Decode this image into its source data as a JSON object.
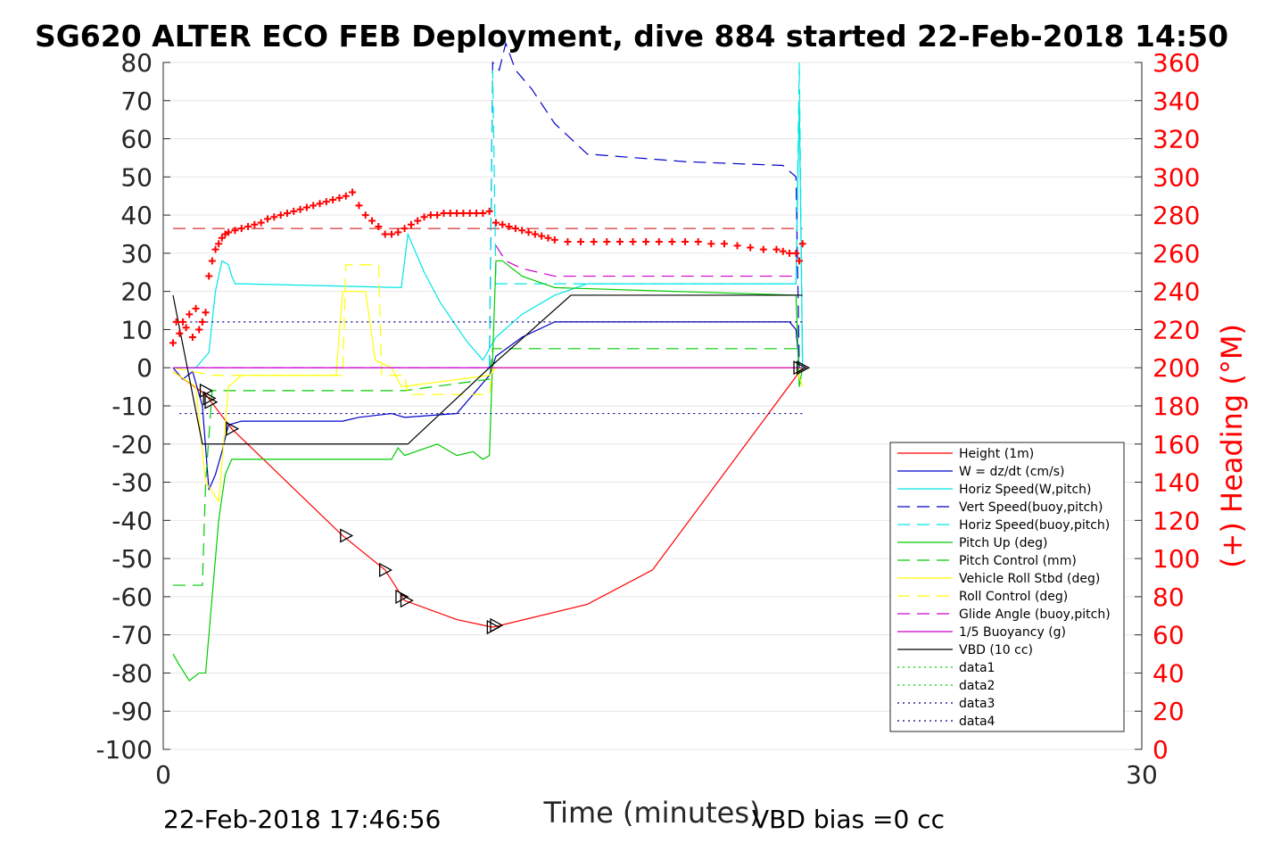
{
  "chart_data": {
    "type": "line",
    "title": "SG620 ALTER ECO FEB Deployment, dive 884 started 22-Feb-2018 14:50",
    "xlabel": "Time (minutes)",
    "ylabel_right": "(+) Heading (°M)",
    "xlim": [
      0,
      30
    ],
    "ylim": [
      -100,
      80
    ],
    "ylim_right": [
      0,
      360
    ],
    "x_ticks": [
      "0",
      "30"
    ],
    "y_ticks": [
      "80",
      "70",
      "60",
      "50",
      "40",
      "30",
      "20",
      "10",
      "0",
      "-10",
      "-20",
      "-30",
      "-40",
      "-50",
      "-60",
      "-70",
      "-80",
      "-90",
      "-100"
    ],
    "y_right_ticks": [
      "360",
      "340",
      "320",
      "300",
      "280",
      "260",
      "240",
      "220",
      "200",
      "180",
      "160",
      "140",
      "120",
      "100",
      "80",
      "60",
      "40",
      "20",
      "0"
    ],
    "grid": true,
    "legend_position": "lower-right",
    "footer_left": "22-Feb-2018 17:46:56",
    "footer_right": "VBD bias =0 cc",
    "series": [
      {
        "name": "Height (1m)",
        "color": "#ff0000",
        "style": "solid",
        "x": [
          0.3,
          1.3,
          2.1,
          5.5,
          6.8,
          7.4,
          9.0,
          10.1,
          13.0,
          15.0,
          19.6
        ],
        "y": [
          -1,
          -7,
          -16,
          -44,
          -53,
          -61,
          -66,
          -68,
          -62,
          -53,
          0
        ]
      },
      {
        "name": "W = dz/dt (cm/s)",
        "color": "#0000cc",
        "style": "solid",
        "x": [
          0.3,
          0.6,
          0.9,
          1.2,
          1.4,
          1.6,
          1.8,
          2.0,
          2.4,
          5.5,
          6.0,
          7.0,
          7.4,
          9.0,
          10.0,
          10.2,
          11.0,
          12.0,
          19.2,
          19.4,
          19.5
        ],
        "y": [
          0,
          -3,
          -1,
          -10,
          -32,
          -28,
          -22,
          -15,
          -14,
          -14,
          -13,
          -12,
          -13,
          -12,
          -2,
          3,
          8,
          12,
          12,
          10,
          0
        ]
      },
      {
        "name": "Horiz Speed(W,pitch)",
        "color": "#00e5e5",
        "style": "solid",
        "x": [
          0.3,
          1.0,
          1.4,
          1.6,
          1.8,
          2.0,
          2.1,
          2.2,
          2.4,
          7.3,
          7.5,
          8.0,
          8.5,
          9.3,
          9.8,
          10.2,
          11.0,
          12.0,
          13.0,
          19.4,
          19.5,
          19.6
        ],
        "y": [
          0,
          0,
          4,
          20,
          28,
          27,
          24,
          22,
          22,
          21,
          35,
          25,
          17,
          7,
          2,
          8,
          14,
          19,
          22,
          22,
          70,
          0
        ]
      },
      {
        "name": "Vert Speed(buoy,pitch)",
        "color": "#0000cc",
        "style": "dashed",
        "x": [
          10.0,
          10.1,
          10.3,
          10.5,
          10.8,
          11.3,
          12.0,
          13.0,
          16.0,
          19.0,
          19.4,
          19.5
        ],
        "y": [
          0,
          80,
          78,
          85,
          78,
          73,
          64,
          56,
          54,
          53,
          50,
          0
        ]
      },
      {
        "name": "Horiz Speed(buoy,pitch)",
        "color": "#00e5e5",
        "style": "dashed",
        "x": [
          10.0,
          10.1,
          10.2,
          19.4,
          19.5,
          19.6
        ],
        "y": [
          0,
          78,
          22,
          22,
          80,
          0
        ]
      },
      {
        "name": "Pitch Up (deg)",
        "color": "#00cc00",
        "style": "solid",
        "x": [
          0.3,
          0.5,
          0.8,
          1.1,
          1.3,
          1.5,
          1.7,
          1.9,
          2.1,
          2.4,
          7.0,
          7.2,
          7.4,
          8.4,
          9.0,
          9.5,
          9.8,
          10.0,
          10.2,
          10.4,
          11.0,
          12.0,
          19.4,
          19.5,
          19.6
        ],
        "y": [
          -75,
          -78,
          -82,
          -80,
          -80,
          -60,
          -40,
          -28,
          -24,
          -24,
          -24,
          -21,
          -23,
          -20,
          -23,
          -22,
          -24,
          -23,
          28,
          28,
          24,
          21,
          19,
          -5,
          0
        ]
      },
      {
        "name": "Pitch Control (mm)",
        "color": "#00cc00",
        "style": "dashed",
        "x": [
          0.3,
          1.2,
          1.3,
          1.5,
          7.4,
          10.0,
          10.1,
          19.6
        ],
        "y": [
          -57,
          -57,
          -30,
          -6,
          -6,
          -3,
          5,
          5
        ]
      },
      {
        "name": "Vehicle Roll Stbd (deg)",
        "color": "#ffff00",
        "style": "solid",
        "x": [
          0.3,
          1.0,
          1.3,
          1.7,
          2.0,
          2.4,
          5.3,
          5.5,
          6.2,
          6.5,
          7.0,
          7.3,
          10.0,
          10.2,
          19.4,
          19.6
        ],
        "y": [
          -1,
          -5,
          -30,
          -35,
          -5,
          -2,
          -2,
          20,
          20,
          2,
          0,
          -5,
          -2,
          0,
          0,
          -5
        ]
      },
      {
        "name": "Roll Control (deg)",
        "color": "#ffff00",
        "style": "dashed",
        "x": [
          0.3,
          1.5,
          1.7,
          5.5,
          5.6,
          6.6,
          6.7,
          7.4,
          7.5,
          10.0,
          10.1,
          19.6
        ],
        "y": [
          0,
          -2,
          -2,
          -2,
          27,
          27,
          -2,
          -2,
          -7,
          -7,
          0,
          0
        ]
      },
      {
        "name": "Glide Angle (buoy,pitch)",
        "color": "#cc00cc",
        "style": "dashed",
        "x": [
          10.2,
          10.5,
          11.0,
          12.0,
          13.0,
          19.4
        ],
        "y": [
          32,
          28,
          26,
          24,
          24,
          24
        ]
      },
      {
        "name": "1/5 Buoyancy (g)",
        "color": "#cc00cc",
        "style": "solid",
        "x": [
          0.3,
          19.6
        ],
        "y": [
          0,
          0
        ]
      },
      {
        "name": "VBD (10 cc)",
        "color": "#000000",
        "style": "solid",
        "x": [
          0.3,
          1.2,
          7.5,
          10.0,
          12.5,
          19.6
        ],
        "y": [
          19,
          -20,
          -20,
          0,
          19,
          19
        ]
      },
      {
        "name": "data1",
        "color": "#00cc00",
        "style": "dotted",
        "x": [],
        "y": []
      },
      {
        "name": "data2",
        "color": "#00cc00",
        "style": "dotted",
        "x": [],
        "y": []
      },
      {
        "name": "data3",
        "color": "#00008b",
        "style": "dotted",
        "x": [
          0.5,
          19.6
        ],
        "y": [
          12,
          12
        ]
      },
      {
        "name": "data4",
        "color": "#00008b",
        "style": "dotted",
        "x": [
          0.5,
          19.6
        ],
        "y": [
          -12,
          -12
        ]
      }
    ],
    "reference_lines": [
      {
        "color": "#cc0000",
        "style": "dashed",
        "x": [
          0.3,
          19.6
        ],
        "y": [
          36.5,
          36.5
        ]
      },
      {
        "color": "#8800ff",
        "style": "dashed",
        "x": [
          0.3,
          19.6
        ],
        "y": [
          0,
          0
        ]
      }
    ],
    "markers": [
      {
        "x": 1.3,
        "y": -6
      },
      {
        "x": 1.4,
        "y": -8
      },
      {
        "x": 1.45,
        "y": -9
      },
      {
        "x": 2.1,
        "y": -16
      },
      {
        "x": 5.6,
        "y": -44
      },
      {
        "x": 6.8,
        "y": -53
      },
      {
        "x": 7.3,
        "y": -60
      },
      {
        "x": 7.45,
        "y": -61
      },
      {
        "x": 10.1,
        "y": -68
      },
      {
        "x": 10.2,
        "y": -67.5
      },
      {
        "x": 19.5,
        "y": 0
      },
      {
        "x": 19.6,
        "y": 0
      }
    ],
    "heading_points": {
      "axis": "right",
      "x": [
        0.3,
        0.4,
        0.5,
        0.6,
        0.7,
        0.8,
        0.9,
        1.0,
        1.1,
        1.2,
        1.3,
        1.4,
        1.5,
        1.6,
        1.7,
        1.8,
        1.9,
        2.0,
        2.2,
        2.4,
        2.6,
        2.8,
        3.0,
        3.2,
        3.4,
        3.6,
        3.8,
        4.0,
        4.2,
        4.4,
        4.6,
        4.8,
        5.0,
        5.2,
        5.4,
        5.6,
        5.8,
        6.0,
        6.2,
        6.4,
        6.6,
        6.8,
        7.0,
        7.2,
        7.4,
        7.6,
        7.8,
        8.0,
        8.2,
        8.4,
        8.6,
        8.8,
        9.0,
        9.2,
        9.4,
        9.6,
        9.8,
        10.0,
        10.2,
        10.4,
        10.6,
        10.8,
        11.0,
        11.2,
        11.4,
        11.6,
        11.8,
        12.0,
        12.4,
        12.8,
        13.2,
        13.6,
        14.0,
        14.4,
        14.8,
        15.2,
        15.6,
        16.0,
        16.4,
        16.8,
        17.2,
        17.6,
        18.0,
        18.4,
        18.8,
        19.0,
        19.2,
        19.4,
        19.5,
        19.6
      ],
      "y": [
        213,
        224,
        218,
        224,
        221,
        228,
        216,
        231,
        220,
        224,
        229,
        248,
        256,
        262,
        265,
        268,
        270,
        271,
        272,
        273,
        274,
        275,
        276,
        278,
        279,
        280,
        281,
        282,
        283,
        284,
        285,
        286,
        287,
        288,
        289,
        290,
        292,
        285,
        280,
        277,
        274,
        270,
        270,
        271,
        273,
        275,
        277,
        279,
        280,
        280,
        281,
        281,
        281,
        281,
        281,
        281,
        281,
        282,
        276,
        275,
        274,
        273,
        272,
        271,
        270,
        269,
        268,
        267,
        266,
        266,
        266,
        266,
        266,
        266,
        266,
        266,
        266,
        266,
        266,
        265,
        265,
        264,
        263,
        262,
        262,
        261,
        260,
        260,
        256,
        265
      ]
    }
  }
}
